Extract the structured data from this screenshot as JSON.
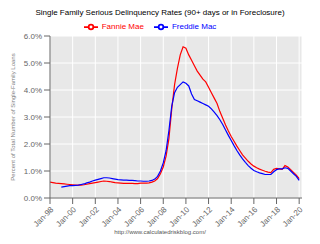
{
  "chart_data": {
    "type": "line",
    "title": "Single Family Serious Delinquency Rates (90+ days or in Foreclosure)",
    "ylabel": "Percent of Total Number of Single-Family Loans",
    "annotations": [
      "http://www.calculatedriskblog.com/"
    ],
    "x": [
      1998,
      1998.25,
      1998.5,
      1998.75,
      1999,
      1999.25,
      1999.5,
      1999.75,
      2000,
      2000.25,
      2000.5,
      2000.75,
      2001,
      2001.25,
      2001.5,
      2001.75,
      2002,
      2002.25,
      2002.5,
      2002.75,
      2003,
      2003.25,
      2003.5,
      2003.75,
      2004,
      2004.25,
      2004.5,
      2004.75,
      2005,
      2005.25,
      2005.5,
      2005.75,
      2006,
      2006.25,
      2006.5,
      2006.75,
      2007,
      2007.25,
      2007.5,
      2007.75,
      2008,
      2008.25,
      2008.5,
      2008.75,
      2009,
      2009.25,
      2009.5,
      2009.75,
      2010,
      2010.25,
      2010.5,
      2010.75,
      2011,
      2011.25,
      2011.5,
      2011.75,
      2012,
      2012.25,
      2012.5,
      2012.75,
      2013,
      2013.25,
      2013.5,
      2013.75,
      2014,
      2014.25,
      2014.5,
      2014.75,
      2015,
      2015.25,
      2015.5,
      2015.75,
      2016,
      2016.25,
      2016.5,
      2016.75,
      2017,
      2017.25,
      2017.5,
      2017.75,
      2018,
      2018.25,
      2018.5,
      2018.75,
      2019,
      2019.25,
      2019.5,
      2019.75,
      2020
    ],
    "series": [
      {
        "name": "Fannie Mae",
        "color": "red",
        "values": [
          0.0059,
          0.0057,
          0.0055,
          0.0054,
          0.0053,
          0.0052,
          0.0051,
          0.005,
          0.0049,
          0.0048,
          0.0048,
          0.0048,
          0.0049,
          0.0051,
          0.0053,
          0.0055,
          0.0057,
          0.0059,
          0.0061,
          0.0063,
          0.0062,
          0.0061,
          0.0059,
          0.0057,
          0.0056,
          0.0055,
          0.0054,
          0.0054,
          0.0054,
          0.0054,
          0.0053,
          0.0053,
          0.0055,
          0.0055,
          0.0055,
          0.0056,
          0.0059,
          0.0063,
          0.0072,
          0.009,
          0.0115,
          0.0155,
          0.022,
          0.033,
          0.042,
          0.048,
          0.053,
          0.056,
          0.0555,
          0.053,
          0.051,
          0.049,
          0.047,
          0.0455,
          0.044,
          0.043,
          0.041,
          0.039,
          0.037,
          0.035,
          0.032,
          0.0295,
          0.027,
          0.0248,
          0.0228,
          0.021,
          0.0192,
          0.0176,
          0.016,
          0.0148,
          0.0136,
          0.0126,
          0.0118,
          0.0112,
          0.0107,
          0.0103,
          0.0099,
          0.0096,
          0.0094,
          0.0106,
          0.011,
          0.0108,
          0.0106,
          0.012,
          0.0115,
          0.0105,
          0.0095,
          0.0085,
          0.0072
        ]
      },
      {
        "name": "Freddie Mac",
        "color": "blue",
        "values": [
          null,
          null,
          null,
          null,
          0.004,
          0.0042,
          0.0044,
          0.0046,
          0.0046,
          0.0047,
          0.0048,
          0.005,
          0.0052,
          0.0056,
          0.0059,
          0.0063,
          0.0066,
          0.0069,
          0.0072,
          0.0075,
          0.0075,
          0.0074,
          0.0072,
          0.007,
          0.0068,
          0.0067,
          0.0066,
          0.0066,
          0.0065,
          0.0065,
          0.0064,
          0.0063,
          0.0063,
          0.0062,
          0.0062,
          0.0063,
          0.0065,
          0.007,
          0.008,
          0.01,
          0.013,
          0.0175,
          0.025,
          0.034,
          0.039,
          0.041,
          0.042,
          0.043,
          0.0425,
          0.0415,
          0.0385,
          0.0365,
          0.036,
          0.0355,
          0.035,
          0.0345,
          0.034,
          0.033,
          0.0318,
          0.0305,
          0.029,
          0.0272,
          0.0252,
          0.0232,
          0.0213,
          0.0194,
          0.0176,
          0.016,
          0.0145,
          0.0132,
          0.012,
          0.011,
          0.0102,
          0.0097,
          0.0093,
          0.009,
          0.0087,
          0.0087,
          0.0087,
          0.0097,
          0.0105,
          0.0108,
          0.0108,
          0.0112,
          0.011,
          0.01,
          0.009,
          0.008,
          0.0065
        ]
      }
    ],
    "xlim": [
      1998,
      2020.25
    ],
    "xticks": [
      {
        "value": 1998,
        "label": "Jan-98"
      },
      {
        "value": 2000,
        "label": "Jan-00"
      },
      {
        "value": 2002,
        "label": "Jan-02"
      },
      {
        "value": 2004,
        "label": "Jan-04"
      },
      {
        "value": 2006,
        "label": "Jan-06"
      },
      {
        "value": 2008,
        "label": "Jan-08"
      },
      {
        "value": 2010,
        "label": "Jan-10"
      },
      {
        "value": 2012,
        "label": "Jan-12"
      },
      {
        "value": 2014,
        "label": "Jan-14"
      },
      {
        "value": 2016,
        "label": "Jan-16"
      },
      {
        "value": 2018,
        "label": "Jan-18"
      },
      {
        "value": 2020,
        "label": "Jan-20"
      }
    ],
    "ylim": [
      0.0,
      0.06
    ],
    "yticks": [
      {
        "value": 0.0,
        "label": "0.0%"
      },
      {
        "value": 0.01,
        "label": "1.0%"
      },
      {
        "value": 0.02,
        "label": "2.0%"
      },
      {
        "value": 0.03,
        "label": "3.0%"
      },
      {
        "value": 0.04,
        "label": "4.0%"
      },
      {
        "value": 0.05,
        "label": "5.0%"
      },
      {
        "value": 0.06,
        "label": "6.0%"
      }
    ],
    "grid": true,
    "legend": "top"
  }
}
